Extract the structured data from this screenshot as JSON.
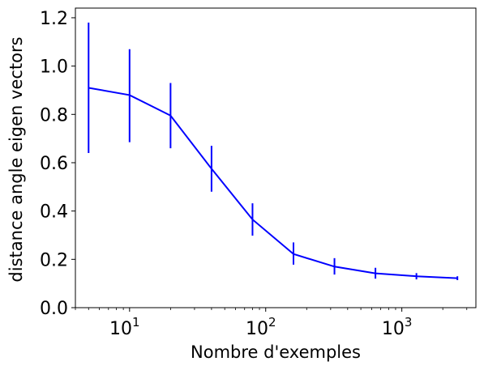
{
  "chart_data": {
    "type": "line",
    "title": "",
    "xlabel": "Nombre d'exemples",
    "ylabel": "distance angle eigen vectors",
    "xscale": "log",
    "xlim": [
      4,
      3500
    ],
    "ylim": [
      0,
      1.24
    ],
    "grid": false,
    "x_ticks": [
      {
        "value": 10,
        "base": "10",
        "exp": "1"
      },
      {
        "value": 100,
        "base": "10",
        "exp": "2"
      },
      {
        "value": 1000,
        "base": "10",
        "exp": "3"
      }
    ],
    "y_ticks": [
      {
        "value": 0.0,
        "label": "0.0"
      },
      {
        "value": 0.2,
        "label": "0.2"
      },
      {
        "value": 0.4,
        "label": "0.4"
      },
      {
        "value": 0.6,
        "label": "0.6"
      },
      {
        "value": 0.8,
        "label": "0.8"
      },
      {
        "value": 1.0,
        "label": "1.0"
      },
      {
        "value": 1.2,
        "label": "1.2"
      }
    ],
    "series": [
      {
        "color": "#0000ff",
        "x": [
          5,
          10,
          20,
          40,
          80,
          160,
          320,
          640,
          1280,
          2560
        ],
        "y": [
          0.91,
          0.88,
          0.795,
          0.575,
          0.365,
          0.222,
          0.17,
          0.142,
          0.13,
          0.122
        ],
        "err_low": [
          0.64,
          0.685,
          0.66,
          0.48,
          0.298,
          0.178,
          0.137,
          0.12,
          0.117,
          0.114
        ],
        "err_high": [
          1.18,
          1.07,
          0.93,
          0.67,
          0.432,
          0.27,
          0.205,
          0.165,
          0.143,
          0.13
        ]
      }
    ]
  }
}
